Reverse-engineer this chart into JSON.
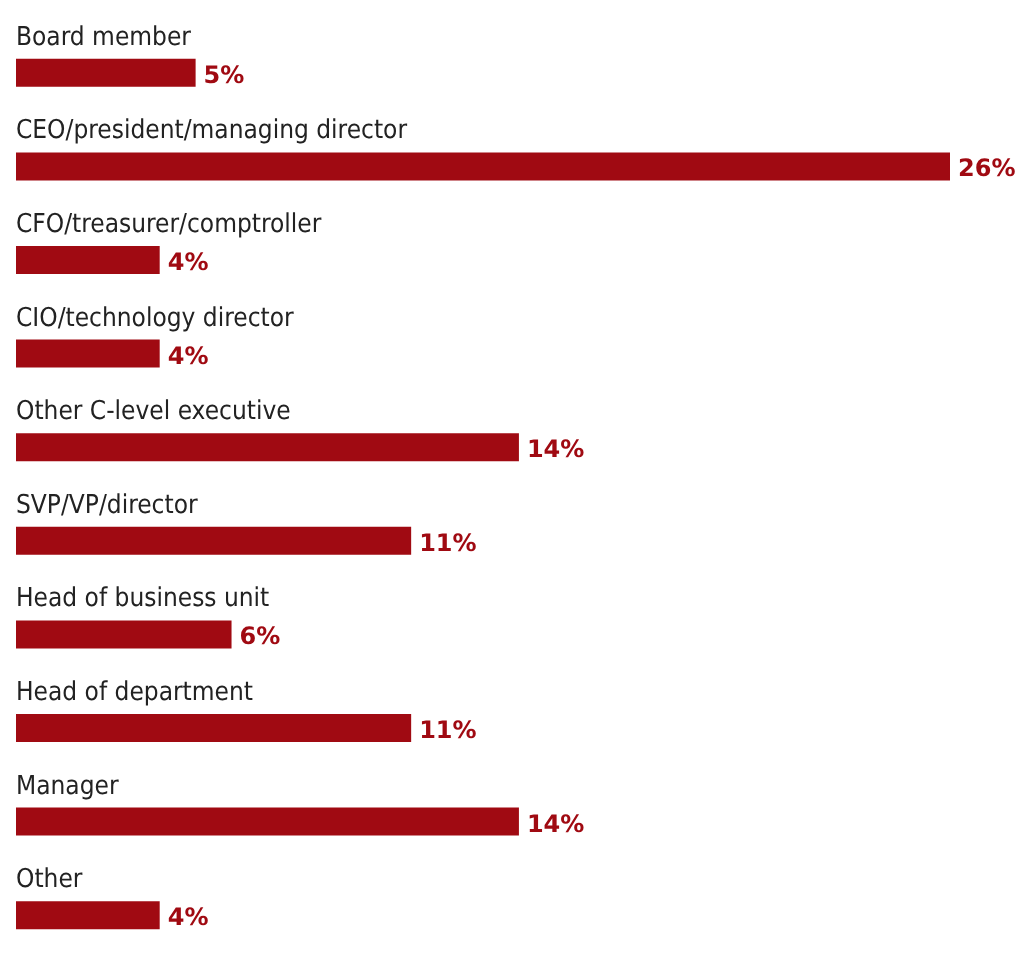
{
  "chart_data": {
    "type": "bar",
    "orientation": "horizontal",
    "categories": [
      "Board member",
      "CEO/president/managing director",
      "CFO/treasurer/comptroller",
      "CIO/technology director",
      "Other C-level executive",
      "SVP/VP/director",
      "Head of business unit",
      "Head of department",
      "Manager",
      "Other"
    ],
    "values": [
      5,
      26,
      4,
      4,
      14,
      11,
      6,
      11,
      14,
      4
    ],
    "value_labels": [
      "5%",
      "26%",
      "4%",
      "4%",
      "14%",
      "11%",
      "6%",
      "11%",
      "14%",
      "4%"
    ],
    "color": "#a00a12"
  }
}
